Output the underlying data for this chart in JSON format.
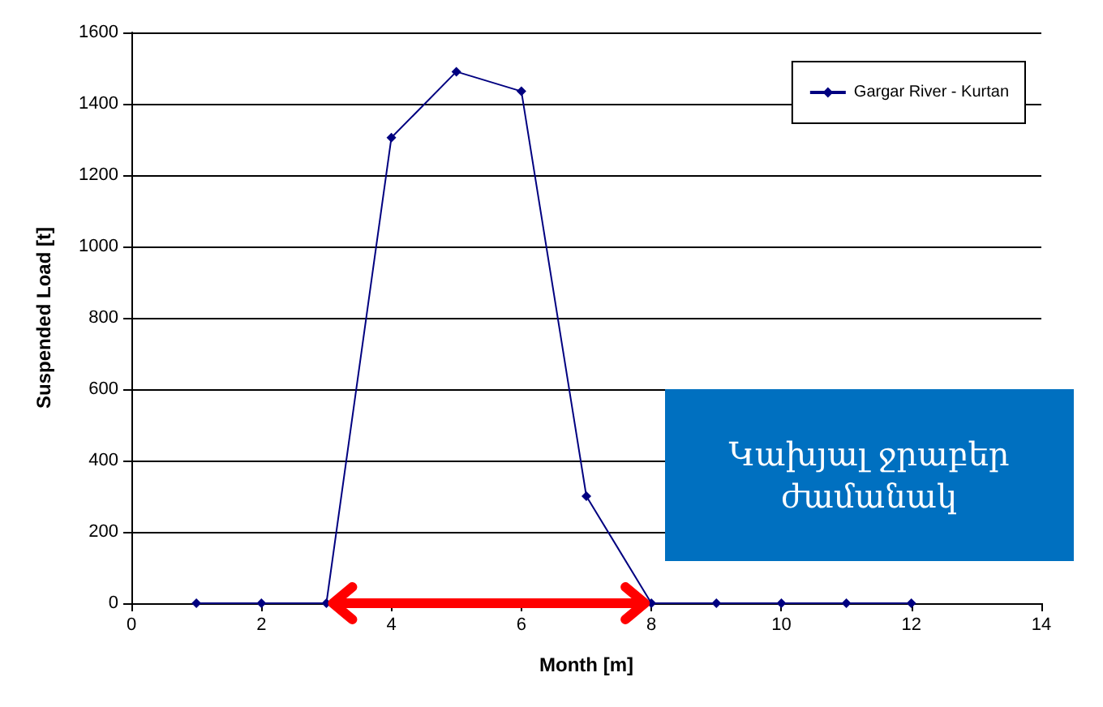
{
  "chart_data": {
    "type": "line",
    "xlabel": "Month [m]",
    "ylabel": "Suspended Load [t]",
    "x": [
      1,
      2,
      3,
      4,
      5,
      6,
      7,
      8,
      9,
      10,
      11,
      12
    ],
    "series": [
      {
        "name": "Gargar River - Kurtan",
        "color": "#000080",
        "values": [
          0,
          0,
          0,
          1305,
          1490,
          1435,
          300,
          0,
          0,
          0,
          0,
          0
        ]
      }
    ],
    "xlim": [
      0,
      14
    ],
    "xticks": [
      0,
      2,
      4,
      6,
      8,
      10,
      12,
      14
    ],
    "ylim": [
      0,
      1600
    ],
    "yticks": [
      0,
      200,
      400,
      600,
      800,
      1000,
      1200,
      1400,
      1600
    ],
    "grid": "y",
    "legend": "top right",
    "marker": "diamond",
    "line_style": "solid",
    "annotations": [
      "Կախյալ ջրաբեր\nժամանակ"
    ]
  }
}
